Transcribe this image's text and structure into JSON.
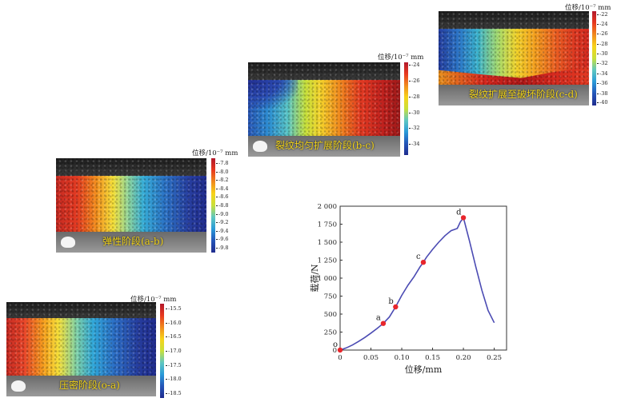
{
  "panels": {
    "p1": {
      "caption": "压密阶段(o-a)",
      "cbar_title": "位移/10⁻⁷ mm",
      "ticks": [
        "-15.5",
        "-16.0",
        "-16.5",
        "-17.0",
        "-17.5",
        "-18.0",
        "-18.5"
      ]
    },
    "p2": {
      "caption": "弹性阶段(a-b)",
      "cbar_title": "位移/10⁻⁷ mm",
      "ticks": [
        "-7.8",
        "-8.0",
        "-8.2",
        "-8.4",
        "-8.6",
        "-8.8",
        "-9.0",
        "-9.2",
        "-9.4",
        "-9.6",
        "-9.8"
      ]
    },
    "p3": {
      "caption": "裂纹均匀扩展阶段(b-c)",
      "cbar_title": "位移/10⁻⁷ mm",
      "ticks": [
        "-24",
        "-26",
        "-28",
        "-30",
        "-32",
        "-34"
      ]
    },
    "p4": {
      "caption": "裂纹扩展至破坏阶段(c-d)",
      "cbar_title": "位移/10⁻⁷ mm",
      "ticks": [
        "-22",
        "-24",
        "-26",
        "-28",
        "-30",
        "-32",
        "-34",
        "-36",
        "-38",
        "-40"
      ]
    }
  },
  "colors": {
    "curve": "#4b4bb3",
    "point": "#e8262c",
    "caption": "#f0d21a"
  },
  "chart_data": {
    "type": "line",
    "xlabel": "位移/mm",
    "ylabel": "载荷/N",
    "xlim": [
      0,
      0.27
    ],
    "ylim": [
      0,
      2000
    ],
    "xticks": [
      0,
      0.05,
      0.1,
      0.15,
      0.2,
      0.25
    ],
    "xtick_labels": [
      "0",
      "0.05",
      "0.10",
      "0.15",
      "0.20",
      "0.25"
    ],
    "yticks": [
      0,
      250,
      500,
      750,
      1000,
      1250,
      1500,
      1750,
      2000
    ],
    "ytick_labels": [
      "0",
      "250",
      "500",
      "750",
      "1 000",
      "1 250",
      "1 500",
      "1 750",
      "2 000"
    ],
    "series": [
      {
        "x": [
          0,
          0.01,
          0.02,
          0.03,
          0.04,
          0.05,
          0.06,
          0.07,
          0.08,
          0.09,
          0.1,
          0.11,
          0.12,
          0.13,
          0.135,
          0.14,
          0.15,
          0.16,
          0.17,
          0.18,
          0.19,
          0.195,
          0.2,
          0.21,
          0.22,
          0.23,
          0.24,
          0.25
        ],
        "y": [
          0,
          30,
          70,
          120,
          175,
          235,
          300,
          370,
          460,
          600,
          760,
          900,
          1020,
          1160,
          1220,
          1290,
          1400,
          1500,
          1590,
          1660,
          1690,
          1780,
          1840,
          1510,
          1160,
          830,
          550,
          380
        ]
      }
    ],
    "points": [
      {
        "label": "o",
        "x": 0,
        "y": 0
      },
      {
        "label": "a",
        "x": 0.07,
        "y": 370
      },
      {
        "label": "b",
        "x": 0.09,
        "y": 600
      },
      {
        "label": "c",
        "x": 0.135,
        "y": 1220
      },
      {
        "label": "d",
        "x": 0.2,
        "y": 1840
      }
    ]
  }
}
